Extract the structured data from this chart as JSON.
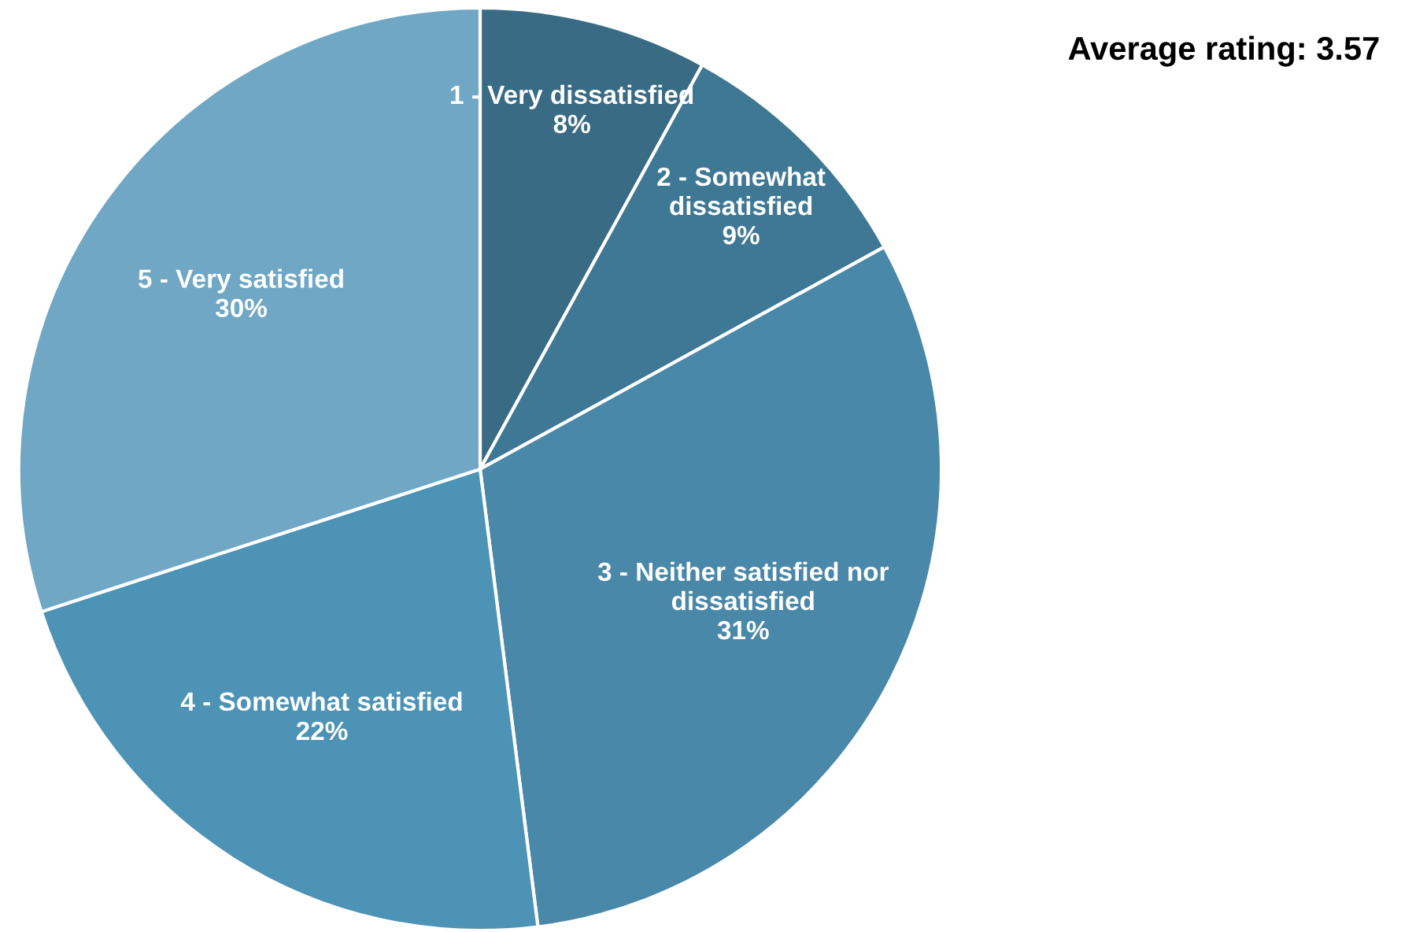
{
  "chart_data": {
    "type": "pie",
    "title": "Average rating: 3.57",
    "categories": [
      "1 - Very dissatisfied",
      "2 - Somewhat\ndissatisfied",
      "3 - Neither satisfied nor\ndissatisfied",
      "4 - Somewhat satisfied",
      "5 - Very satisfied"
    ],
    "values": [
      8,
      9,
      31,
      22,
      30
    ],
    "value_labels": [
      "8%",
      "9%",
      "31%",
      "22%",
      "30%"
    ],
    "colors": [
      "#396b85",
      "#3f7894",
      "#4988a8",
      "#4d93b5",
      "#6fa7c5"
    ],
    "legend": false
  }
}
